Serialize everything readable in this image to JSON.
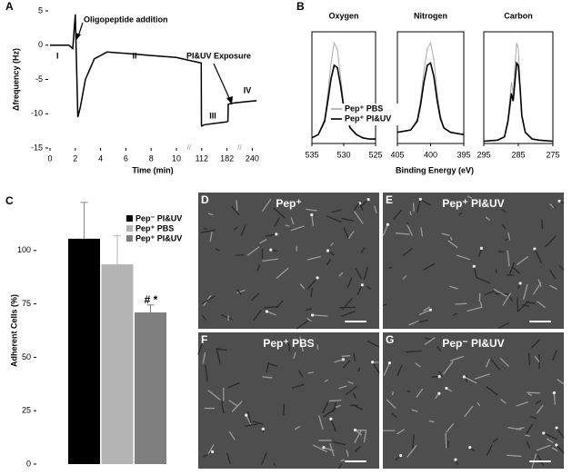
{
  "chart_data": [
    {
      "type": "line",
      "panel": "A",
      "xlabel": "Time (min)",
      "ylabel": "Δfrequency (Hz)",
      "x": [
        0,
        1.5,
        1.8,
        1.9,
        2.0,
        2.1,
        2.2,
        2.4,
        2.8,
        3.5,
        4.5,
        6,
        8,
        10,
        60,
        110,
        111,
        111.5,
        120,
        150,
        180,
        184,
        185,
        200,
        230,
        250
      ],
      "values": [
        0,
        0,
        -0.5,
        2,
        4.5,
        -3,
        -10.5,
        -9,
        -5,
        -2,
        -1,
        -1.2,
        -1.5,
        -1.8,
        -2.2,
        -2.6,
        -11.5,
        -11.8,
        -11.6,
        -11.4,
        -11.2,
        -11.1,
        -8.6,
        -8.4,
        -8.2,
        -8.1
      ],
      "color": "#000000",
      "xlim": [
        0,
        250
      ],
      "xticks": [
        0,
        2,
        4,
        6,
        8,
        10,
        112,
        182,
        240
      ],
      "ylim": [
        -15,
        5
      ],
      "yticks": [
        5,
        0,
        -5,
        -10,
        -15
      ],
      "annotations": [
        "I",
        "II",
        "III",
        "IV",
        "Oligopeptide addition",
        "PI&UV Exposure"
      ]
    },
    {
      "type": "spectra",
      "panel": "B",
      "xlabel": "Binding Energy (eV)",
      "ylim": [
        0,
        100
      ],
      "series": [
        {
          "name": "Pep⁺ PBS",
          "color": "#aaaaaa"
        },
        {
          "name": "Pep⁺ PI&UV",
          "color": "#000000"
        }
      ],
      "subplots": [
        {
          "title": "Oxygen",
          "xlim": [
            535,
            525
          ],
          "xticks": [
            535,
            530,
            525
          ],
          "x": [
            535,
            534,
            533,
            532.5,
            532,
            531.5,
            531,
            530.5,
            530,
            529,
            528,
            527,
            526,
            525
          ],
          "series_values": [
            [
              5,
              8,
              22,
              45,
              72,
              90,
              84,
              60,
              35,
              15,
              8,
              5,
              4,
              4
            ],
            [
              5,
              8,
              20,
              38,
              58,
              70,
              68,
              52,
              32,
              14,
              8,
              5,
              4,
              4
            ]
          ]
        },
        {
          "title": "Nitrogen",
          "xlim": [
            405,
            395
          ],
          "xticks": [
            405,
            400,
            395
          ],
          "x": [
            405,
            403,
            402,
            401.5,
            401,
            400.5,
            400,
            399.5,
            399,
            398.5,
            398,
            397,
            395
          ],
          "series_values": [
            [
              10,
              12,
              22,
              40,
              65,
              85,
              90,
              75,
              45,
              25,
              14,
              10,
              8
            ],
            [
              10,
              12,
              20,
              35,
              55,
              70,
              72,
              60,
              38,
              22,
              14,
              10,
              8
            ]
          ]
        },
        {
          "title": "Carbon",
          "xlim": [
            295,
            275
          ],
          "xticks": [
            295,
            285,
            275
          ],
          "x": [
            295,
            291,
            289,
            288,
            287,
            286.5,
            286,
            285.5,
            285,
            284.5,
            284,
            283,
            281,
            279,
            275
          ],
          "series_values": [
            [
              2,
              3,
              6,
              22,
              55,
              45,
              70,
              90,
              85,
              55,
              27,
              10,
              4,
              3,
              2
            ],
            [
              2,
              3,
              6,
              20,
              45,
              38,
              55,
              72,
              70,
              50,
              25,
              10,
              4,
              3,
              2
            ]
          ]
        }
      ]
    },
    {
      "type": "bar",
      "panel": "C",
      "ylabel": "Adherent Cells (%)",
      "series": [
        {
          "name": "Pep⁻ PI&UV",
          "color": "#000000",
          "values": [
            105.5
          ],
          "errors": [
            17
          ]
        },
        {
          "name": "Pep⁺ PBS",
          "color": "#b4b4b4",
          "values": [
            93.5
          ],
          "errors": [
            13.5
          ]
        },
        {
          "name": "Pep⁺ PI&UV",
          "color": "#7f7f7f",
          "values": [
            71
          ],
          "errors": [
            3.5
          ]
        }
      ],
      "ylim": [
        0,
        125
      ],
      "yticks": [
        0,
        25,
        50,
        75,
        100
      ],
      "annotation": "# *"
    }
  ],
  "images": [
    {
      "panel": "D",
      "label": "Pep⁺"
    },
    {
      "panel": "E",
      "label": "Pep⁺ PI&UV"
    },
    {
      "panel": "F",
      "label": "Pep⁺ PBS"
    },
    {
      "panel": "G",
      "label": "Pep⁻ PI&UV"
    }
  ]
}
